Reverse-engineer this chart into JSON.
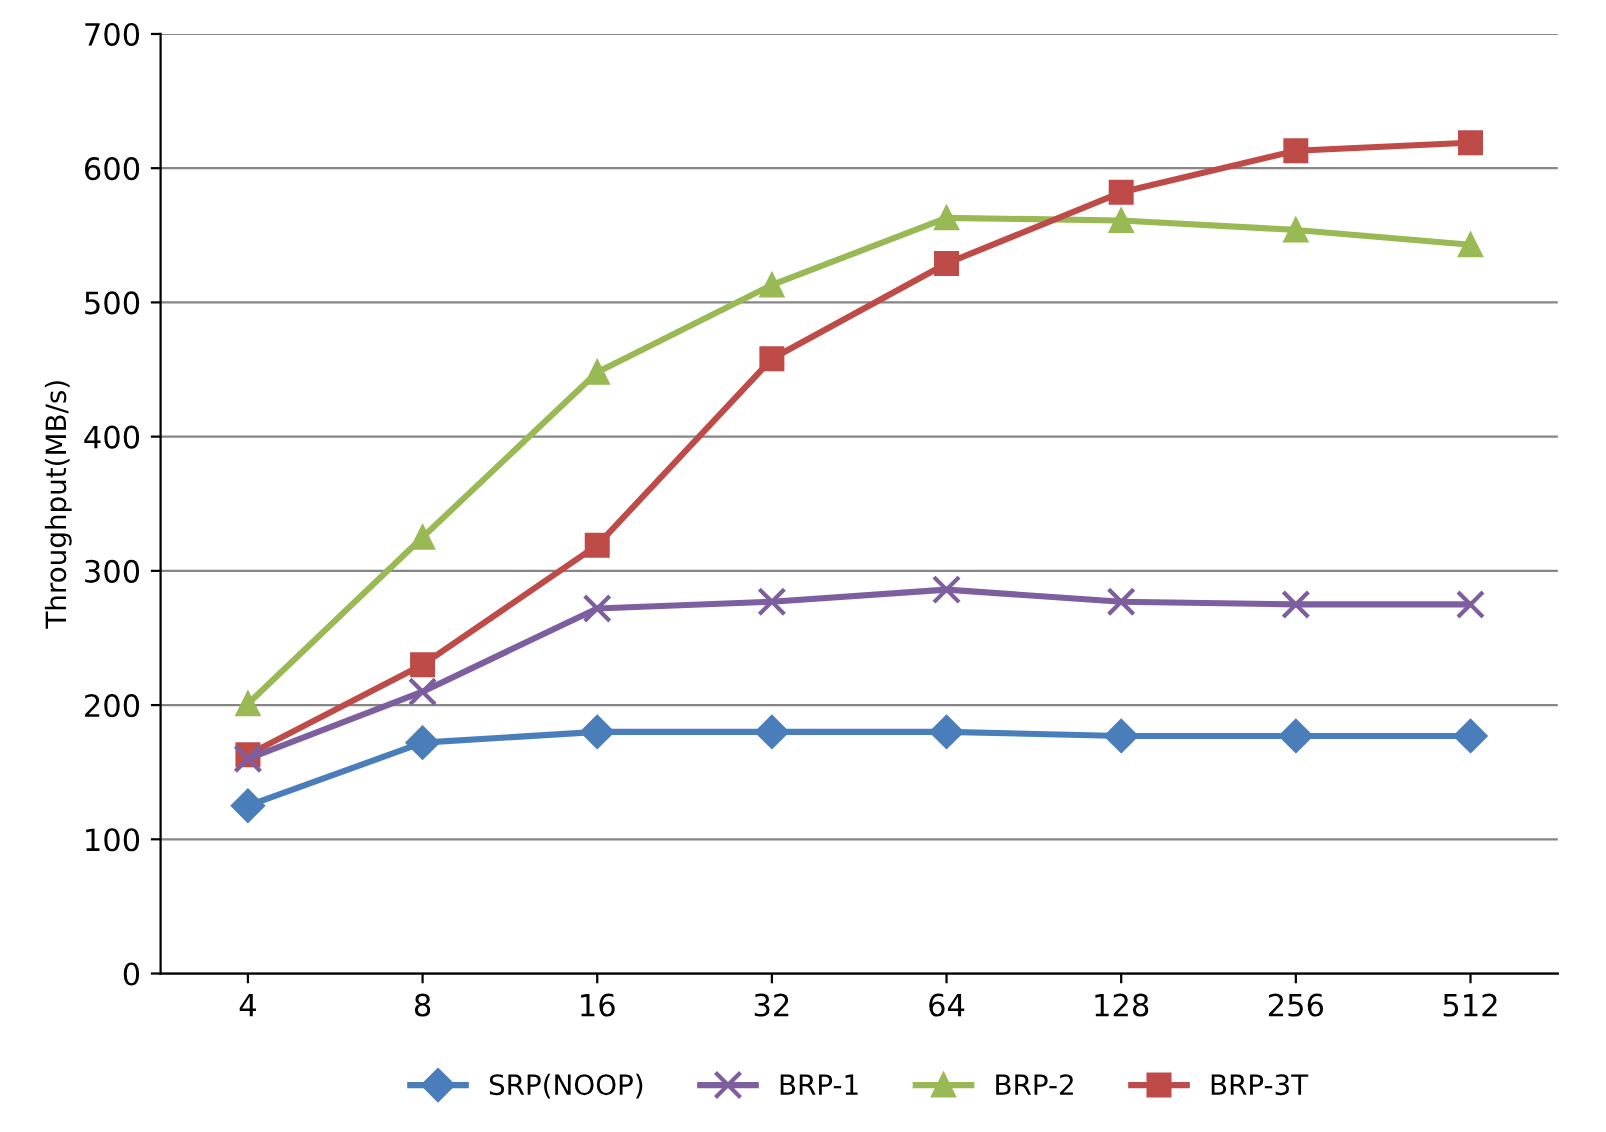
{
  "chart_data": {
    "type": "line",
    "ylabel": "Throughput(MB/s)",
    "categories": [
      "4",
      "8",
      "16",
      "32",
      "64",
      "128",
      "256",
      "512"
    ],
    "series": [
      {
        "name": "SRP(NOOP)",
        "color": "#4a7ebb",
        "marker": "diamond",
        "values": [
          125,
          172,
          180,
          180,
          180,
          177,
          177,
          177
        ]
      },
      {
        "name": "BRP-1",
        "color": "#7d5fa0",
        "marker": "cross",
        "values": [
          160,
          210,
          272,
          277,
          286,
          277,
          275,
          275
        ]
      },
      {
        "name": "BRP-2",
        "color": "#98b954",
        "marker": "triangle",
        "values": [
          201,
          325,
          448,
          513,
          563,
          561,
          554,
          543
        ]
      },
      {
        "name": "BRP-3T",
        "color": "#be4b48",
        "marker": "square",
        "values": [
          163,
          230,
          319,
          458,
          529,
          582,
          613,
          619
        ]
      }
    ],
    "ylim": [
      0,
      700
    ],
    "yticks": [
      0,
      100,
      200,
      300,
      400,
      500,
      600,
      700
    ],
    "grid": "y",
    "legend": "bottom",
    "line_style": "solid"
  }
}
